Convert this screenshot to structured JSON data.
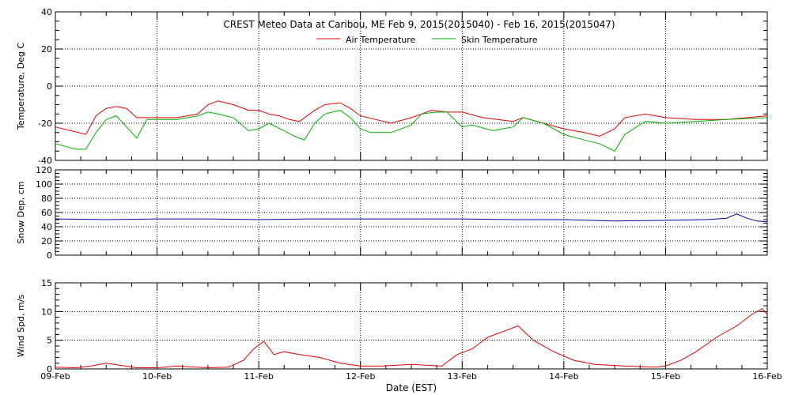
{
  "chart_data": {
    "title": "CREST Meteo Data at Caribou, ME   Feb  9, 2015(2015040) - Feb 16, 2015(2015047)",
    "xlabel": "Date (EST)",
    "x_ticks": [
      "09-Feb",
      "10-Feb",
      "11-Feb",
      "12-Feb",
      "13-Feb",
      "14-Feb",
      "15-Feb",
      "16-Feb"
    ],
    "x_unit": "day offset from 09-Feb",
    "xlim": [
      0,
      7
    ],
    "grid": true,
    "panels": [
      {
        "type": "line",
        "ylabel": "Temperature, Deg C",
        "ylim": [
          -40,
          40
        ],
        "y_ticks": [
          "-40",
          "-20",
          "0",
          "20",
          "40"
        ],
        "legend_position": "top-center",
        "series": [
          {
            "name": "Air Temperature",
            "color": "#e00000",
            "x": [
              0.0,
              0.15,
              0.3,
              0.4,
              0.5,
              0.6,
              0.7,
              0.8,
              0.9,
              1.0,
              1.2,
              1.4,
              1.5,
              1.6,
              1.75,
              1.9,
              2.0,
              2.1,
              2.2,
              2.3,
              2.4,
              2.55,
              2.65,
              2.8,
              2.9,
              3.0,
              3.15,
              3.3,
              3.5,
              3.6,
              3.7,
              3.85,
              4.0,
              4.2,
              4.5,
              4.6,
              4.8,
              5.0,
              5.2,
              5.35,
              5.5,
              5.6,
              5.8,
              6.0,
              6.3,
              6.6,
              7.0
            ],
            "y": [
              -22,
              -24,
              -26,
              -16,
              -12,
              -11,
              -12,
              -17,
              -17,
              -17,
              -17,
              -15,
              -10,
              -8,
              -10,
              -13,
              -13,
              -15,
              -16,
              -18,
              -19,
              -13,
              -10,
              -9,
              -12,
              -16,
              -18,
              -20,
              -17,
              -15,
              -13,
              -14,
              -14,
              -17,
              -19,
              -17,
              -20,
              -23,
              -25,
              -27,
              -23,
              -17,
              -15,
              -17,
              -18,
              -18,
              -16
            ]
          },
          {
            "name": "Skin Temperature",
            "color": "#00b000",
            "x": [
              0.0,
              0.2,
              0.3,
              0.4,
              0.5,
              0.6,
              0.7,
              0.8,
              0.9,
              1.0,
              1.2,
              1.4,
              1.5,
              1.6,
              1.75,
              1.9,
              2.0,
              2.1,
              2.25,
              2.35,
              2.45,
              2.55,
              2.65,
              2.8,
              2.9,
              3.0,
              3.1,
              3.3,
              3.5,
              3.6,
              3.75,
              3.85,
              4.0,
              4.1,
              4.3,
              4.5,
              4.6,
              4.8,
              5.0,
              5.2,
              5.35,
              5.5,
              5.6,
              5.8,
              6.0,
              6.3,
              6.6,
              7.0
            ],
            "y": [
              -31,
              -34,
              -34,
              -25,
              -18,
              -16,
              -22,
              -28,
              -18,
              -18,
              -18,
              -16,
              -14,
              -15,
              -17,
              -24,
              -23,
              -20,
              -24,
              -27,
              -29,
              -20,
              -15,
              -13,
              -17,
              -23,
              -25,
              -25,
              -21,
              -15,
              -14,
              -14,
              -22,
              -21,
              -24,
              -22,
              -17,
              -20,
              -26,
              -29,
              -31,
              -35,
              -26,
              -19,
              -20,
              -19,
              -18,
              -17
            ]
          }
        ]
      },
      {
        "type": "line",
        "ylabel": "Snow Dep, cm",
        "ylim": [
          0,
          120
        ],
        "y_ticks": [
          "0",
          "20",
          "40",
          "60",
          "80",
          "100",
          "120"
        ],
        "series": [
          {
            "name": "Snow Depth",
            "color": "#0000a0",
            "x": [
              0.0,
              0.5,
              1.0,
              1.5,
              2.0,
              2.5,
              3.0,
              3.5,
              4.0,
              4.5,
              5.0,
              5.5,
              6.0,
              6.4,
              6.6,
              6.7,
              6.8,
              6.9,
              7.0
            ],
            "y": [
              51,
              50,
              51,
              51,
              50,
              51,
              51,
              51,
              51,
              50,
              50,
              48,
              49,
              50,
              52,
              58,
              52,
              48,
              47
            ]
          }
        ]
      },
      {
        "type": "line",
        "ylabel": "Wind Spd, m/s",
        "ylim": [
          0,
          15
        ],
        "y_ticks": [
          "0",
          "5",
          "10",
          "15"
        ],
        "series": [
          {
            "name": "Wind Speed",
            "color": "#e00000",
            "x": [
              0.0,
              0.2,
              0.35,
              0.5,
              0.65,
              0.8,
              1.0,
              1.2,
              1.5,
              1.7,
              1.85,
              1.95,
              2.05,
              2.15,
              2.25,
              2.4,
              2.6,
              2.8,
              3.0,
              3.2,
              3.5,
              3.8,
              3.95,
              4.1,
              4.25,
              4.4,
              4.55,
              4.7,
              4.9,
              5.1,
              5.3,
              5.6,
              5.9,
              6.0,
              6.15,
              6.3,
              6.5,
              6.7,
              6.85,
              6.95,
              7.0
            ],
            "y": [
              0.3,
              0.2,
              0.5,
              1.0,
              0.6,
              0.2,
              0.2,
              0.5,
              0.2,
              0.3,
              1.5,
              3.5,
              4.8,
              2.5,
              3.0,
              2.5,
              2.0,
              1.0,
              0.5,
              0.5,
              0.8,
              0.5,
              2.5,
              3.5,
              5.5,
              6.5,
              7.5,
              5.0,
              3.0,
              1.5,
              0.8,
              0.5,
              0.3,
              0.5,
              1.5,
              3.0,
              5.5,
              7.5,
              9.5,
              10.5,
              9.5
            ]
          }
        ]
      }
    ]
  }
}
